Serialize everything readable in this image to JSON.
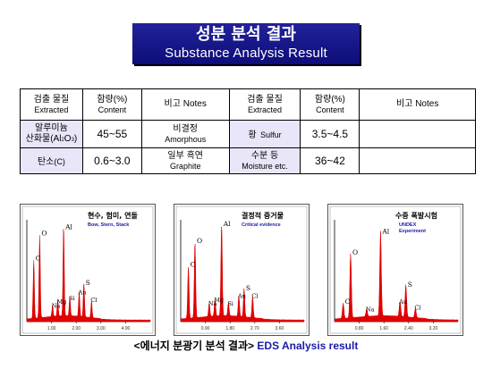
{
  "title": {
    "ko": "성분 분석 결과",
    "en": "Substance Analysis Result"
  },
  "table": {
    "header": {
      "c1_ko": "검출 물질",
      "c1_en": "Extracted",
      "c2_ko": "함량(%)",
      "c2_en": "Content",
      "c3": "비고 Notes",
      "c4_ko": "검출 물질",
      "c4_en": "Extracted",
      "c5_ko": "함량(%)",
      "c5_en": "Content",
      "c6": "비고 Notes"
    },
    "rows": [
      {
        "name_ko": "알루미늄",
        "name_ko2": "산화물(Al",
        "name_sub1": "2",
        "name_mid": "O",
        "name_sub2": "3",
        "name_end": ")",
        "content": "45~55",
        "note_ko": "비결정",
        "note_en": "Amorphous",
        "name2_ko": "황",
        "name2_en": "Sulfur",
        "content2": "3.5~4.5",
        "note2": ""
      },
      {
        "name_ko": "탄소",
        "name_en": "(C)",
        "content": "0.6~3.0",
        "note_ko": "일부 흑연",
        "note_en": "Graphite",
        "name2_ko": "수분 등",
        "name2_en": "Moisture etc.",
        "content2": "36~42",
        "note2": ""
      }
    ]
  },
  "charts": [
    {
      "title_ko": "현수, 험미, 연돌",
      "title_en": "Bow, Stern, Stack",
      "peaks": [
        {
          "label": "C",
          "energy": 0.28,
          "height": 0.62
        },
        {
          "label": "O",
          "energy": 0.52,
          "height": 0.88
        },
        {
          "label": "Na",
          "energy": 1.04,
          "height": 0.12
        },
        {
          "label": "Mg",
          "energy": 1.25,
          "height": 0.16
        },
        {
          "label": "Al",
          "energy": 1.49,
          "height": 0.95
        },
        {
          "label": "Si",
          "energy": 1.74,
          "height": 0.2
        },
        {
          "label": "Au",
          "energy": 2.12,
          "height": 0.26
        },
        {
          "label": "S",
          "energy": 2.31,
          "height": 0.36
        },
        {
          "label": "Cl",
          "energy": 2.62,
          "height": 0.18
        }
      ],
      "ticks": [
        "1.00",
        "2.00",
        "3.00",
        "4.00"
      ],
      "xmax": 5.0
    },
    {
      "title_ko": "결정적 증거물",
      "title_en": "Critical evidence",
      "peaks": [
        {
          "label": "C",
          "energy": 0.28,
          "height": 0.55
        },
        {
          "label": "O",
          "energy": 0.52,
          "height": 0.8
        },
        {
          "label": "Na",
          "energy": 1.04,
          "height": 0.14
        },
        {
          "label": "Mg",
          "energy": 1.25,
          "height": 0.18
        },
        {
          "label": "Al",
          "energy": 1.49,
          "height": 0.98
        },
        {
          "label": "Si",
          "energy": 1.74,
          "height": 0.14
        },
        {
          "label": "Au",
          "energy": 2.12,
          "height": 0.22
        },
        {
          "label": "S",
          "energy": 2.31,
          "height": 0.3
        },
        {
          "label": "Cl",
          "energy": 2.62,
          "height": 0.22
        }
      ],
      "ticks": [
        "0.90",
        "1.80",
        "2.70",
        "3.60"
      ],
      "xmax": 4.5
    },
    {
      "title_ko": "수중 폭발시험",
      "title_en": "UNDEX Experiment",
      "peaks": [
        {
          "label": "C",
          "energy": 0.28,
          "height": 0.16
        },
        {
          "label": "O",
          "energy": 0.52,
          "height": 0.68
        },
        {
          "label": "Na",
          "energy": 1.04,
          "height": 0.08
        },
        {
          "label": "Al",
          "energy": 1.49,
          "height": 0.9
        },
        {
          "label": "Au",
          "energy": 2.12,
          "height": 0.16
        },
        {
          "label": "S",
          "energy": 2.31,
          "height": 0.34
        },
        {
          "label": "Cl",
          "energy": 2.62,
          "height": 0.1
        }
      ],
      "ticks": [
        "0.80",
        "1.60",
        "2.40",
        "3.20"
      ],
      "xmax": 4.0
    }
  ],
  "caption": {
    "ko": "<에너지 분광기 분석 결과>",
    "en": "EDS Analysis result"
  },
  "colors": {
    "title_bg": "#1a1a8c",
    "spectrum": "#e00000",
    "chart_bg": "#ffffff",
    "shade": "#e8e6f8",
    "caption_en": "#1a1aa8"
  }
}
